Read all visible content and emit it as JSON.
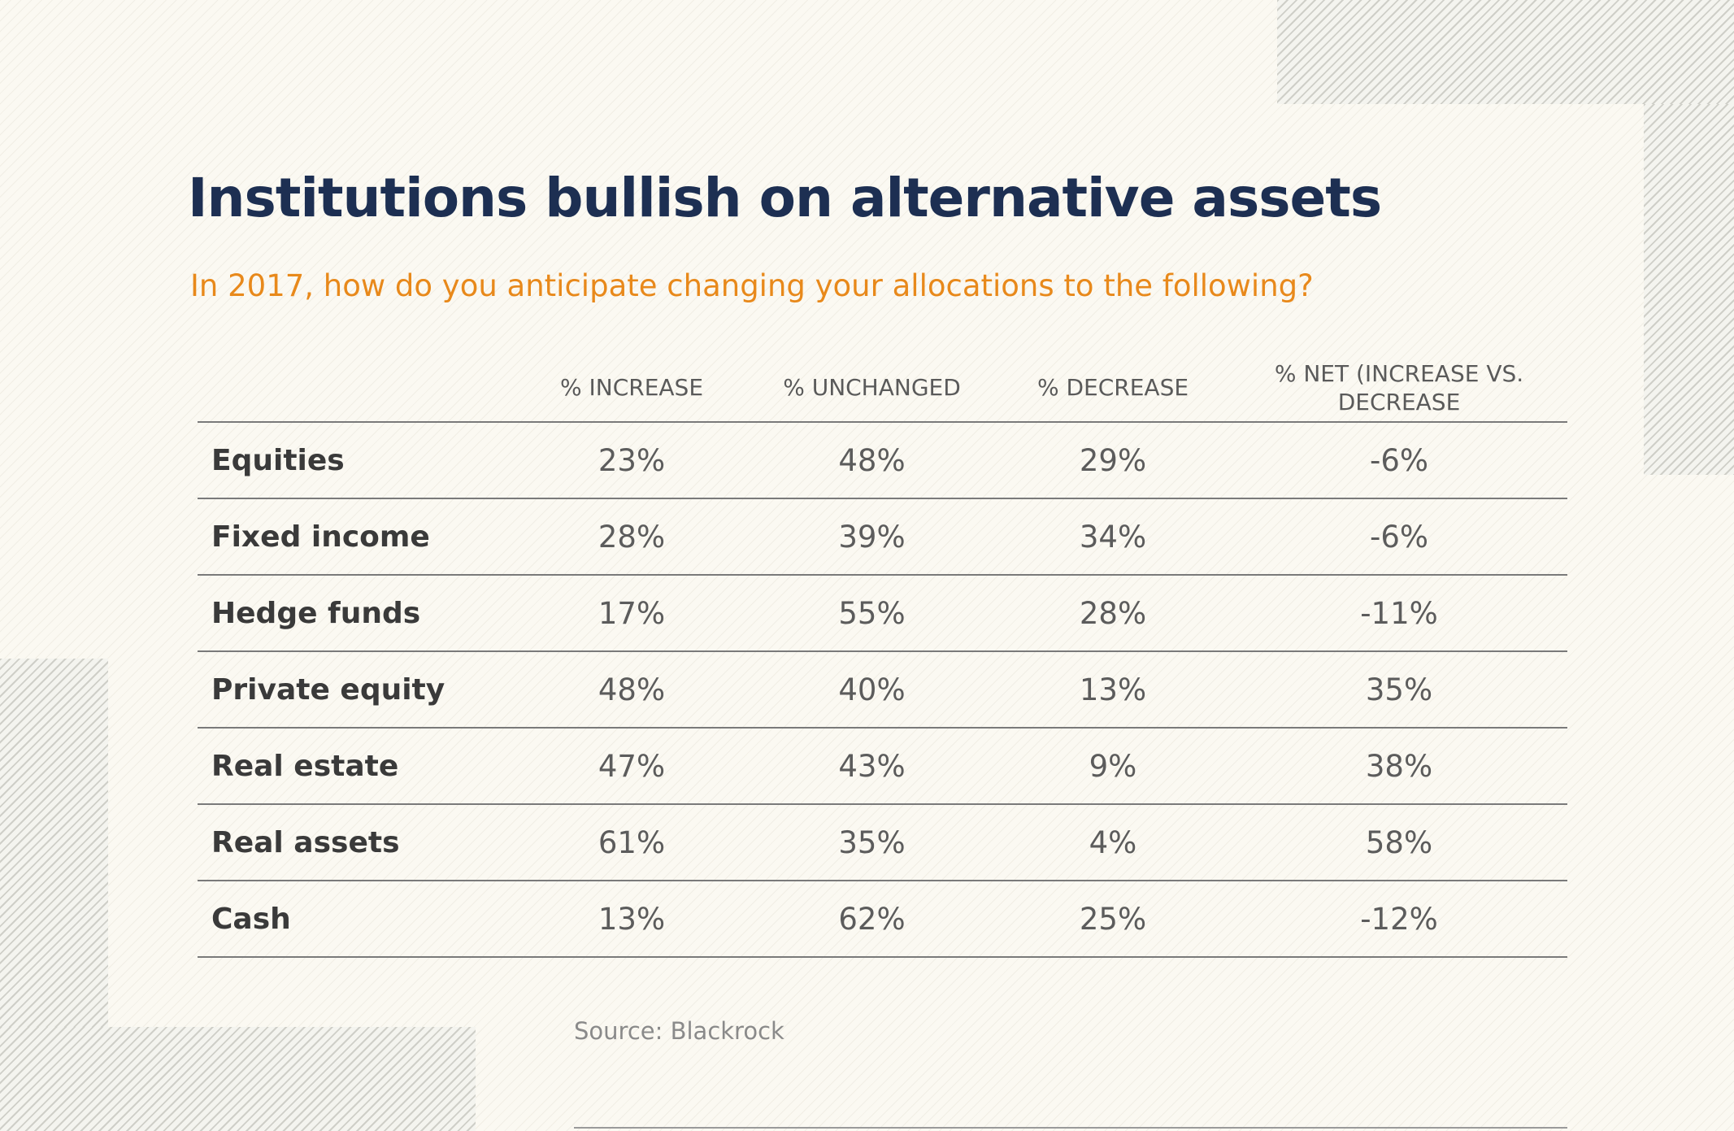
{
  "title": "Institutions bullish on alternative assets",
  "subtitle": "In 2017, how do you anticipate changing your allocations to the following?",
  "table": {
    "columns": [
      "",
      "% INCREASE",
      "% UNCHANGED",
      "% DECREASE",
      "% NET (INCREASE VS. DECREASE"
    ],
    "rows": [
      {
        "label": "Equities",
        "increase": "23%",
        "unchanged": "48%",
        "decrease": "29%",
        "net": "-6%"
      },
      {
        "label": "Fixed income",
        "increase": "28%",
        "unchanged": "39%",
        "decrease": "34%",
        "net": "-6%"
      },
      {
        "label": "Hedge funds",
        "increase": "17%",
        "unchanged": "55%",
        "decrease": "28%",
        "net": "-11%"
      },
      {
        "label": "Private equity",
        "increase": "48%",
        "unchanged": "40%",
        "decrease": "13%",
        "net": "35%"
      },
      {
        "label": "Real estate",
        "increase": "47%",
        "unchanged": "43%",
        "decrease": "9%",
        "net": "38%"
      },
      {
        "label": "Real assets",
        "increase": "61%",
        "unchanged": "35%",
        "decrease": "4%",
        "net": "58%"
      },
      {
        "label": "Cash",
        "increase": "13%",
        "unchanged": "62%",
        "decrease": "25%",
        "net": "-12%"
      }
    ]
  },
  "source": "Source: Blackrock",
  "colors": {
    "title": "#1d2f52",
    "subtitle": "#e8891b",
    "text": "#5c5c5c",
    "rule": "#7a7a7a"
  },
  "chart_data": {
    "type": "table",
    "title": "Institutions bullish on alternative assets",
    "subtitle": "In 2017, how do you anticipate changing your allocations to the following?",
    "columns": [
      "% INCREASE",
      "% UNCHANGED",
      "% DECREASE",
      "% NET (INCREASE VS. DECREASE"
    ],
    "categories": [
      "Equities",
      "Fixed income",
      "Hedge funds",
      "Private equity",
      "Real estate",
      "Real assets",
      "Cash"
    ],
    "series": [
      {
        "name": "% INCREASE",
        "values": [
          23,
          28,
          17,
          48,
          47,
          61,
          13
        ]
      },
      {
        "name": "% UNCHANGED",
        "values": [
          48,
          39,
          55,
          40,
          43,
          35,
          62
        ]
      },
      {
        "name": "% DECREASE",
        "values": [
          29,
          34,
          28,
          13,
          9,
          4,
          25
        ]
      },
      {
        "name": "% NET (INCREASE VS. DECREASE",
        "values": [
          -6,
          -6,
          -11,
          35,
          38,
          58,
          -12
        ]
      }
    ],
    "source": "Source: Blackrock"
  }
}
